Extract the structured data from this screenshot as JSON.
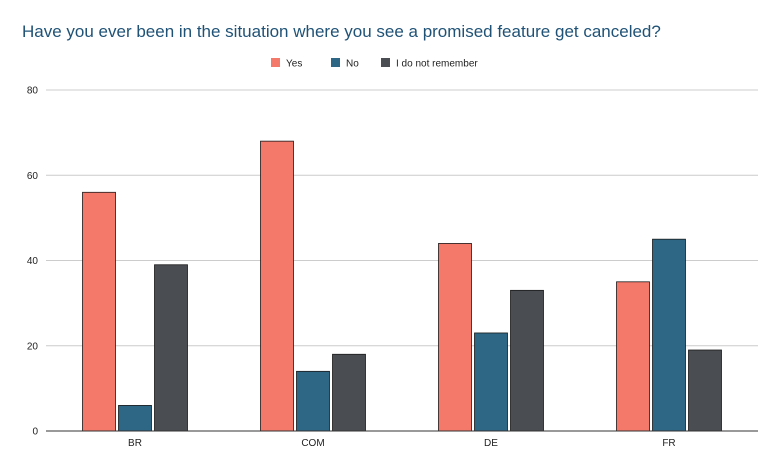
{
  "chart_data": {
    "type": "bar",
    "title": "Have you ever been in the situation where you see a promised feature get canceled?",
    "xlabel": "",
    "ylabel": "",
    "categories": [
      "BR",
      "COM",
      "DE",
      "FR"
    ],
    "series": [
      {
        "name": "Yes",
        "color": "#F5796A",
        "values": [
          56,
          68,
          44,
          35
        ]
      },
      {
        "name": "No",
        "color": "#2E6686",
        "values": [
          6,
          14,
          23,
          45
        ]
      },
      {
        "name": "I do not remember",
        "color": "#4A4D52",
        "values": [
          39,
          18,
          33,
          19
        ]
      }
    ],
    "ylim": [
      0,
      80
    ],
    "yticks": [
      0,
      20,
      40,
      60,
      80
    ],
    "grid": true,
    "legend_position": "top-center",
    "title_color": "#1F5276"
  }
}
